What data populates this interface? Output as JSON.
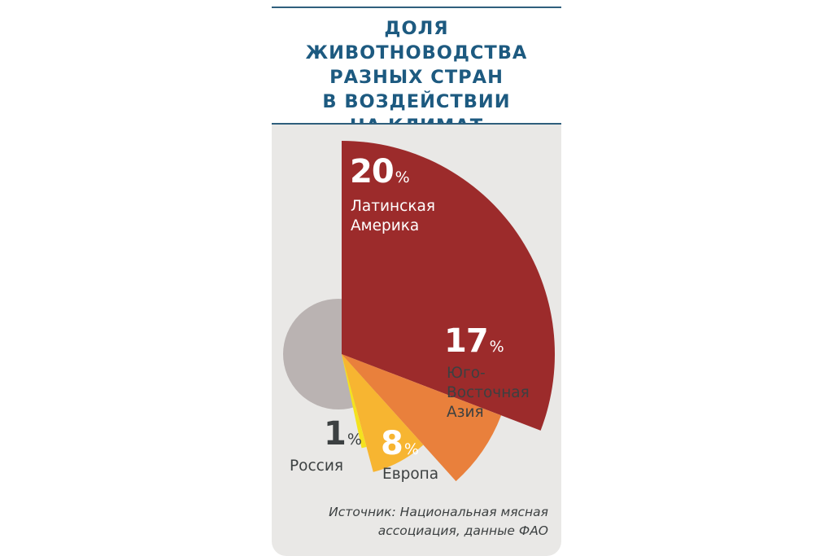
{
  "chart_data": {
    "type": "pie",
    "title": [
      "ДОЛЯ ЖИВОТНОВОДСТВА",
      "РАЗНЫХ СТРАН",
      "В ВОЗДЕЙСТВИИ",
      "НА КЛИМАТ"
    ],
    "unit": "%",
    "categories": [
      "Латинская\nАмерика",
      "Юго-\nВосточная\nАзия",
      "Европа",
      "Россия"
    ],
    "values": [
      20,
      17,
      8,
      1
    ],
    "colors": [
      "#9c2b2b",
      "#e9803c",
      "#f7b531",
      "#f4e21f"
    ],
    "background_circle_color": "#bab3b2",
    "source": "Источник: Национальная мясная\nассоциация, данные ФАО"
  }
}
